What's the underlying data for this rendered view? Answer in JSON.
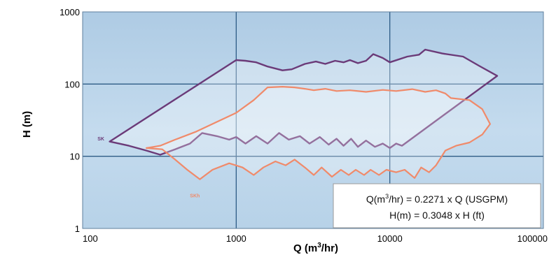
{
  "chart_data": {
    "type": "area",
    "title": "",
    "xlabel": {
      "main": "Q (m",
      "sup": "3",
      "tail": "/hr)"
    },
    "ylabel": "H (m)",
    "x_scale": "log",
    "y_scale": "log",
    "xlim": [
      100,
      100000
    ],
    "ylim": [
      1,
      1000
    ],
    "x_ticks": [
      {
        "value": 100,
        "label": "100"
      },
      {
        "value": 1000,
        "label": "1000"
      },
      {
        "value": 10000,
        "label": "10000"
      },
      {
        "value": 100000,
        "label": "100000"
      }
    ],
    "y_ticks": [
      {
        "value": 1,
        "label": "1"
      },
      {
        "value": 10,
        "label": "10"
      },
      {
        "value": 100,
        "label": "100"
      },
      {
        "value": 1000,
        "label": "1000"
      }
    ],
    "grid": true,
    "colors": {
      "plot_background": "#b9d3e8",
      "grid": "#2e5c86",
      "series_1": "#6b3a78",
      "series_2": "#f08a6a"
    },
    "series": [
      {
        "name": "SK",
        "color": "#6b3a78",
        "label_at": [
          125,
          16.5
        ],
        "points": [
          [
            150,
            16
          ],
          [
            200,
            14
          ],
          [
            260,
            12
          ],
          [
            320,
            10.5
          ],
          [
            400,
            12.5
          ],
          [
            500,
            15
          ],
          [
            600,
            21
          ],
          [
            750,
            19
          ],
          [
            900,
            17
          ],
          [
            1000,
            18.5
          ],
          [
            1150,
            15
          ],
          [
            1350,
            19
          ],
          [
            1600,
            15
          ],
          [
            1900,
            21
          ],
          [
            2200,
            17
          ],
          [
            2600,
            19
          ],
          [
            3000,
            15
          ],
          [
            3500,
            18.5
          ],
          [
            4000,
            14.5
          ],
          [
            4500,
            17.5
          ],
          [
            5000,
            14
          ],
          [
            5600,
            17.5
          ],
          [
            6200,
            13.5
          ],
          [
            7000,
            16.5
          ],
          [
            8000,
            13.5
          ],
          [
            9000,
            15
          ],
          [
            10000,
            13
          ],
          [
            11000,
            15
          ],
          [
            12000,
            14
          ],
          [
            50000,
            130
          ],
          [
            38000,
            180
          ],
          [
            30000,
            240
          ],
          [
            22000,
            265
          ],
          [
            17000,
            300
          ],
          [
            15500,
            255
          ],
          [
            13000,
            240
          ],
          [
            10000,
            200
          ],
          [
            9000,
            230
          ],
          [
            7800,
            260
          ],
          [
            7000,
            210
          ],
          [
            6200,
            195
          ],
          [
            5500,
            215
          ],
          [
            5000,
            200
          ],
          [
            4400,
            210
          ],
          [
            3800,
            190
          ],
          [
            3300,
            205
          ],
          [
            2800,
            190
          ],
          [
            2300,
            160
          ],
          [
            2000,
            155
          ],
          [
            1600,
            175
          ],
          [
            1350,
            200
          ],
          [
            1150,
            210
          ],
          [
            1000,
            215
          ]
        ]
      },
      {
        "name": "SKh",
        "color": "#f08a6a",
        "label_at": [
          500,
          2.7
        ],
        "points": [
          [
            260,
            13
          ],
          [
            330,
            12.5
          ],
          [
            400,
            9
          ],
          [
            480,
            6.5
          ],
          [
            580,
            4.8
          ],
          [
            700,
            6.5
          ],
          [
            900,
            8
          ],
          [
            1100,
            7
          ],
          [
            1300,
            5.5
          ],
          [
            1500,
            7
          ],
          [
            1800,
            8.5
          ],
          [
            2100,
            7.5
          ],
          [
            2400,
            9
          ],
          [
            2800,
            7
          ],
          [
            3200,
            5.5
          ],
          [
            3600,
            7
          ],
          [
            4200,
            5.2
          ],
          [
            4800,
            6.5
          ],
          [
            5400,
            5.5
          ],
          [
            6000,
            6.5
          ],
          [
            6800,
            5.5
          ],
          [
            7500,
            6.5
          ],
          [
            8500,
            5.5
          ],
          [
            9500,
            6.5
          ],
          [
            11000,
            6
          ],
          [
            12500,
            6.5
          ],
          [
            14500,
            5
          ],
          [
            16000,
            7
          ],
          [
            18000,
            6
          ],
          [
            20000,
            7.5
          ],
          [
            23000,
            12
          ],
          [
            27000,
            14
          ],
          [
            33000,
            15.5
          ],
          [
            40000,
            20
          ],
          [
            45000,
            28
          ],
          [
            40000,
            45
          ],
          [
            33000,
            60
          ],
          [
            25000,
            64
          ],
          [
            23000,
            74
          ],
          [
            20000,
            82
          ],
          [
            17000,
            78
          ],
          [
            14000,
            85
          ],
          [
            11000,
            80
          ],
          [
            9000,
            83
          ],
          [
            7000,
            78
          ],
          [
            5500,
            82
          ],
          [
            4500,
            80
          ],
          [
            3800,
            86
          ],
          [
            3200,
            82
          ],
          [
            2800,
            86
          ],
          [
            2400,
            90
          ],
          [
            2000,
            92
          ],
          [
            1600,
            90
          ],
          [
            1300,
            60
          ],
          [
            1000,
            40
          ],
          [
            750,
            30
          ],
          [
            550,
            22
          ],
          [
            400,
            17
          ],
          [
            320,
            14
          ]
        ]
      }
    ],
    "annotation": {
      "line1": {
        "pre": "Q(m",
        "sup": "3",
        "post": "/hr) = 0.2271 x Q (USGPM)"
      },
      "line2": "H(m) = 0.3048 x H (ft)"
    }
  }
}
